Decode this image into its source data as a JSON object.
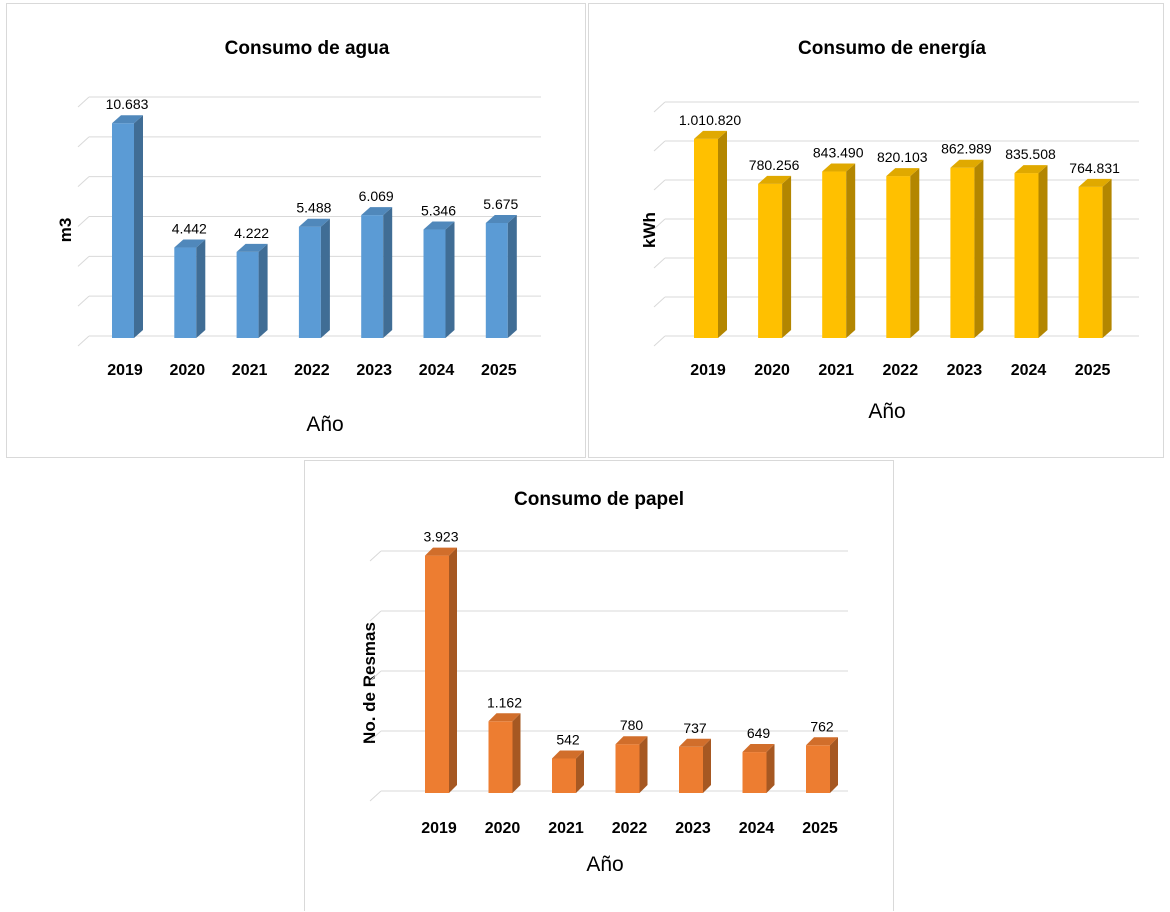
{
  "chart_data": [
    {
      "type": "bar",
      "title": "Consumo de agua",
      "xlabel": "Año",
      "ylabel": "m3",
      "categories": [
        "2019",
        "2020",
        "2021",
        "2022",
        "2023",
        "2024",
        "2025"
      ],
      "values": [
        10683,
        4442,
        4222,
        5488,
        6069,
        5346,
        5675
      ],
      "data_labels": [
        "10.683",
        "4.442",
        "4.222",
        "5.488",
        "6.069",
        "5.346",
        "5.675"
      ],
      "ylim": [
        0,
        12000
      ],
      "grid": true,
      "color": "#5b9bd5",
      "style": "3d"
    },
    {
      "type": "bar",
      "title": "Consumo de energía",
      "xlabel": "Año",
      "ylabel": "kWh",
      "categories": [
        "2019",
        "2020",
        "2021",
        "2022",
        "2023",
        "2024",
        "2025"
      ],
      "values": [
        1010820,
        780256,
        843490,
        820103,
        862989,
        835508,
        764831
      ],
      "data_labels": [
        "1.010.820",
        "780.256",
        "843.490",
        "820.103",
        "862.989",
        "835.508",
        "764.831"
      ],
      "ylim": [
        0,
        1200000
      ],
      "grid": true,
      "color": "#ffc000",
      "style": "3d"
    },
    {
      "type": "bar",
      "title": "Consumo de papel",
      "xlabel": "Año",
      "ylabel": "No. de Resmas",
      "categories": [
        "2019",
        "2020",
        "2021",
        "2022",
        "2023",
        "2024",
        "2025"
      ],
      "values": [
        3923,
        1162,
        542,
        780,
        737,
        649,
        762
      ],
      "data_labels": [
        "3.923",
        "1.162",
        "542",
        "780",
        "737",
        "649",
        "762"
      ],
      "ylim": [
        0,
        4000
      ],
      "grid": true,
      "color": "#ed7d31",
      "style": "3d"
    }
  ]
}
